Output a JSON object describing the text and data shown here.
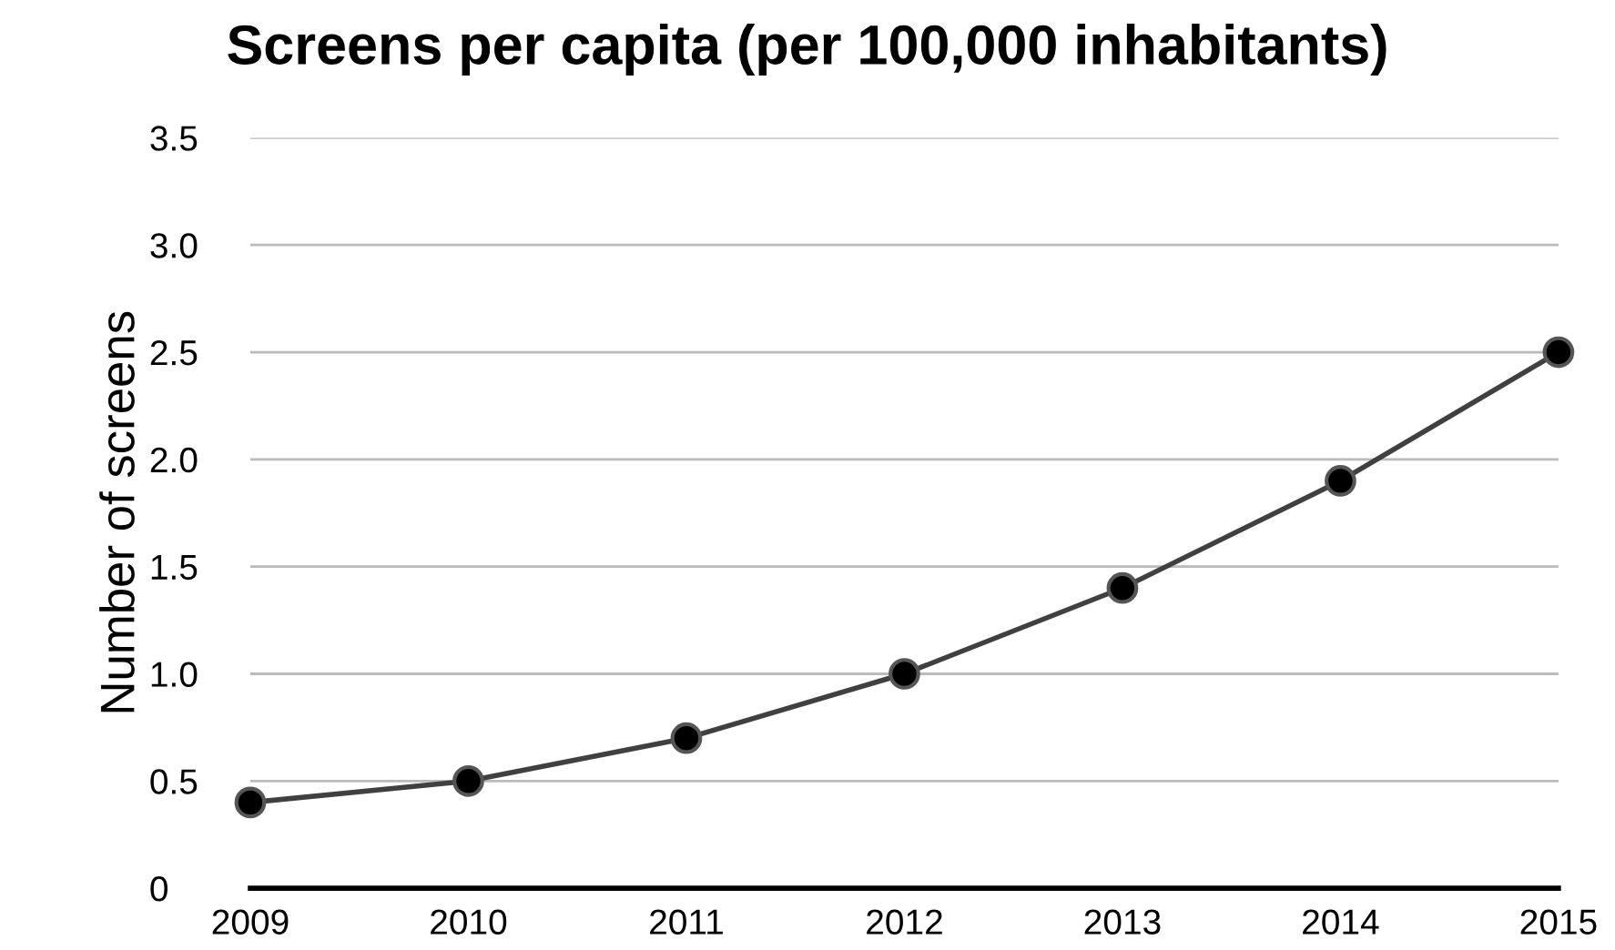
{
  "chart_data": {
    "type": "line",
    "title": "Screens per capita (per 100,000 inhabitants)",
    "ylabel": "Number of screens",
    "x": [
      2009,
      2010,
      2011,
      2012,
      2013,
      2014,
      2015
    ],
    "series": [
      {
        "color": "#404040",
        "values": [
          0.4,
          0.5,
          0.7,
          1.0,
          1.4,
          1.9,
          2.5
        ]
      }
    ],
    "xlim": [
      2009,
      2015
    ],
    "xticks": [
      2009,
      2010,
      2011,
      2012,
      2013,
      2014,
      2015
    ],
    "ylim": [
      0,
      3.5
    ],
    "yticks": [
      0,
      {
        "value": 0.5,
        "label": "0.5"
      },
      {
        "value": 1,
        "label": "1.0"
      },
      {
        "value": 1.5,
        "label": "1.5"
      },
      {
        "value": 2,
        "label": "2.0"
      },
      {
        "value": 2.5,
        "label": "2.5"
      },
      {
        "value": 3,
        "label": "3.0"
      },
      {
        "value": 3.5,
        "label": "3.5"
      }
    ],
    "grid": "y",
    "marker": "circle",
    "line_style": "solid",
    "legend": false
  }
}
